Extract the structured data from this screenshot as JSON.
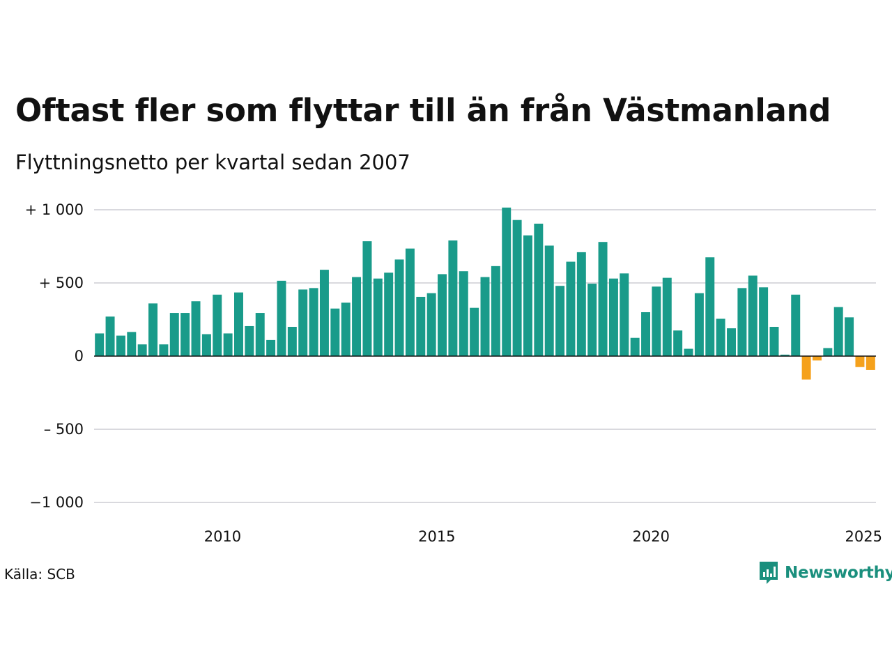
{
  "title": "Oftast fler som flyttar till än från Västmanland",
  "subtitle": "Flyttningsnetto per kvartal sedan 2007",
  "source": "Källa: SCB",
  "brand": "Newsworthy",
  "colors": {
    "positive": "#199b8a",
    "negative": "#f5a11b",
    "grid": "#d9d9de",
    "zero": "#111111",
    "brand": "#1a8f7d"
  },
  "chart_data": {
    "type": "bar",
    "title": "Oftast fler som flyttar till än från Västmanland",
    "subtitle": "Flyttningsnetto per kvartal sedan 2007",
    "xlabel": "",
    "ylabel": "",
    "ylim": [
      -1000,
      1000
    ],
    "yticks": [
      1000,
      500,
      0,
      -500,
      -1000
    ],
    "ytick_labels": [
      "+ 1 000",
      "+   500",
      "0",
      "–  500",
      "−1 000"
    ],
    "xticks": [
      2010,
      2015,
      2020,
      2025
    ],
    "xtick_labels": [
      "2010",
      "2015",
      "2020",
      "2025"
    ],
    "x_start": 2007,
    "periods_per_year": 4,
    "grid": true,
    "legend": "none",
    "values": [
      155,
      270,
      140,
      165,
      80,
      360,
      80,
      295,
      295,
      375,
      150,
      420,
      155,
      435,
      205,
      295,
      110,
      515,
      200,
      455,
      465,
      590,
      325,
      365,
      540,
      785,
      530,
      570,
      660,
      735,
      405,
      430,
      560,
      790,
      580,
      330,
      540,
      615,
      1015,
      930,
      825,
      905,
      755,
      480,
      645,
      710,
      495,
      780,
      530,
      565,
      125,
      300,
      475,
      535,
      175,
      50,
      430,
      675,
      255,
      190,
      465,
      550,
      470,
      200,
      10,
      420,
      -160,
      -30,
      55,
      335,
      265,
      -75,
      -95
    ]
  }
}
